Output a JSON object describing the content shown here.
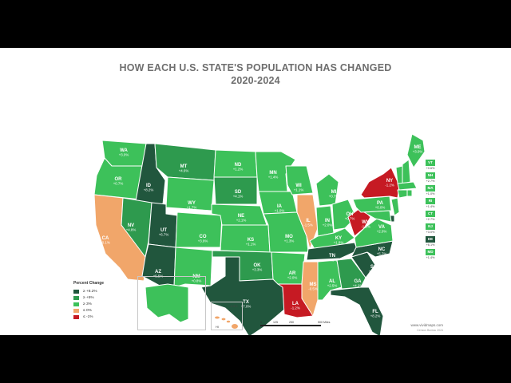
{
  "title": {
    "line1": "HOW EACH U.S. STATE'S POPULATION HAS CHANGED",
    "line2": "2020-2024"
  },
  "colors": {
    "dark_green": "#21563d",
    "mid_green": "#2e9a4e",
    "light_green": "#3dc15a",
    "orange": "#f1a66a",
    "red": "#c61a23",
    "title": "#6e6e6e"
  },
  "legend": {
    "title": "Percent Change",
    "items": [
      {
        "label": "≥ +8.2%",
        "color": "#21563d"
      },
      {
        "label": "≥ +5%",
        "color": "#2e9a4e"
      },
      {
        "label": "≥ 3%",
        "color": "#3dc15a"
      },
      {
        "label": "≤ 0%",
        "color": "#f1a66a"
      },
      {
        "label": "≤ -1%",
        "color": "#c61a23"
      }
    ]
  },
  "states": [
    {
      "abbr": "WA",
      "value": "+3.0%"
    },
    {
      "abbr": "OR",
      "value": "+0.7%"
    },
    {
      "abbr": "CA",
      "value": "-0.1%"
    },
    {
      "abbr": "ID",
      "value": "+8.2%"
    },
    {
      "abbr": "NV",
      "value": "+4.8%"
    },
    {
      "abbr": "MT",
      "value": "+4.6%"
    },
    {
      "abbr": "WY",
      "value": "+1.7%"
    },
    {
      "abbr": "UT",
      "value": "+6.7%"
    },
    {
      "abbr": "AZ",
      "value": "+5.5%"
    },
    {
      "abbr": "CO",
      "value": "+3.9%"
    },
    {
      "abbr": "NM",
      "value": "+0.8%"
    },
    {
      "abbr": "ND",
      "value": "+1.2%"
    },
    {
      "abbr": "SD",
      "value": "+4.1%"
    },
    {
      "abbr": "NE",
      "value": "+2.1%"
    },
    {
      "abbr": "KS",
      "value": "+1.1%"
    },
    {
      "abbr": "OK",
      "value": "+3.3%"
    },
    {
      "abbr": "TX",
      "value": "+7.0%"
    },
    {
      "abbr": "MN",
      "value": "+1.4%"
    },
    {
      "abbr": "IA",
      "value": "+1.0%"
    },
    {
      "abbr": "MO",
      "value": "+1.3%"
    },
    {
      "abbr": "AR",
      "value": "+2.0%"
    },
    {
      "abbr": "LA",
      "value": "-1.2%"
    },
    {
      "abbr": "WI",
      "value": "+1.1%"
    },
    {
      "abbr": "IL",
      "value": "-1.5%"
    },
    {
      "abbr": "MS",
      "value": "-0.5%"
    },
    {
      "abbr": "MI",
      "value": "+0.7%"
    },
    {
      "abbr": "IN",
      "value": "+2.0%"
    },
    {
      "abbr": "KY",
      "value": "+1.8%"
    },
    {
      "abbr": "TN",
      "value": "+4.3%"
    },
    {
      "abbr": "AL",
      "value": "+2.5%"
    },
    {
      "abbr": "OH",
      "value": "+0.7%"
    },
    {
      "abbr": "GA",
      "value": "+4.2%"
    },
    {
      "abbr": "FL",
      "value": "+8.2%"
    },
    {
      "abbr": "SC",
      "value": "+6.8%"
    },
    {
      "abbr": "NC",
      "value": "+5.7%"
    },
    {
      "abbr": "VA",
      "value": "+2.0%"
    },
    {
      "abbr": "WV",
      "value": "-1.2%"
    },
    {
      "abbr": "PA",
      "value": "+0.0%"
    },
    {
      "abbr": "NY",
      "value": "-1.2%"
    },
    {
      "abbr": "ME",
      "value": "+3.0%"
    },
    {
      "abbr": "AK",
      "value": "+1.9%"
    }
  ],
  "sidebar_states": [
    {
      "abbr": "VT",
      "value": "+0.6%"
    },
    {
      "abbr": "NH",
      "value": "+2.7%"
    },
    {
      "abbr": "MA",
      "value": "+1.0%"
    },
    {
      "abbr": "RI",
      "value": "+1.4%"
    },
    {
      "abbr": "CT",
      "value": "+2.7%"
    },
    {
      "abbr": "NJ",
      "value": "+3.0%"
    },
    {
      "abbr": "DE",
      "value": "+6.1%"
    },
    {
      "abbr": "MD",
      "value": "+1.4%"
    }
  ],
  "hawaii_label": "HI",
  "hawaii_value": "-0.8%",
  "scale": {
    "ticks": [
      "0",
      "125",
      "250",
      "500 Miles"
    ]
  },
  "credit": "www.vividmaps.com",
  "source": "Census Bureau 2024"
}
